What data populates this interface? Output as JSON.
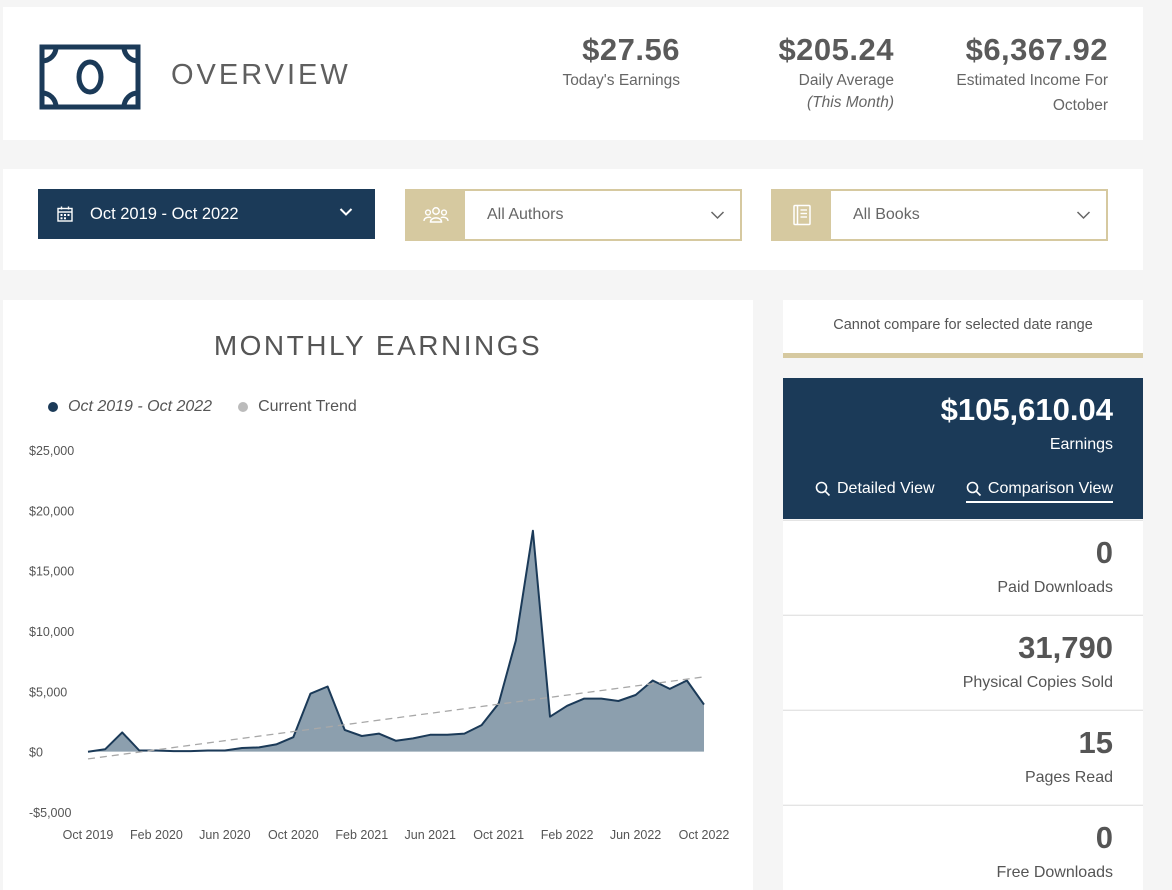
{
  "header": {
    "title": "OVERVIEW",
    "icon": "money-bill-icon",
    "stats": [
      {
        "value": "$27.56",
        "label": "Today's Earnings",
        "sub": ""
      },
      {
        "value": "$205.24",
        "label": "Daily Average",
        "sub": "(This Month)"
      },
      {
        "value": "$6,367.92",
        "label": "Estimated Income For",
        "sub": "October"
      }
    ]
  },
  "filters": {
    "date_range": "Oct 2019 - Oct 2022",
    "authors": "All Authors",
    "books": "All Books"
  },
  "colors": {
    "navy": "#1b3a58",
    "gold": "#d6c9a0",
    "area_fill": "#8c9fae",
    "trend": "#a8a8a8"
  },
  "chart": {
    "title": "MONTHLY EARNINGS",
    "legend": [
      {
        "label": "Oct 2019 - Oct 2022",
        "color": "#1b3a58"
      },
      {
        "label": "Current Trend",
        "color": "#bbbbbb"
      }
    ]
  },
  "chart_data": {
    "type": "area",
    "title": "MONTHLY EARNINGS",
    "ylim": [
      -5000,
      25000
    ],
    "yticks": [
      25000,
      20000,
      15000,
      10000,
      5000,
      0,
      -5000
    ],
    "ytick_labels": [
      "$25,000",
      "$20,000",
      "$15,000",
      "$10,000",
      "$5,000",
      "$0",
      "-$5,000"
    ],
    "xtick_labels": [
      "Oct 2019",
      "Feb 2020",
      "Jun 2020",
      "Oct 2020",
      "Feb 2021",
      "Jun 2021",
      "Oct 2021",
      "Feb 2022",
      "Jun 2022",
      "Oct 2022"
    ],
    "xtick_index": [
      0,
      4,
      8,
      12,
      16,
      20,
      24,
      28,
      32,
      36
    ],
    "series": [
      {
        "name": "Oct 2019 - Oct 2022",
        "values": [
          0,
          200,
          1600,
          100,
          100,
          50,
          50,
          100,
          100,
          300,
          350,
          600,
          1200,
          4800,
          5400,
          1800,
          1300,
          1500,
          900,
          1100,
          1400,
          1400,
          1500,
          2200,
          4000,
          9200,
          18300,
          2900,
          3800,
          4400,
          4400,
          4200,
          4700,
          5900,
          5200,
          5900,
          3900
        ]
      },
      {
        "name": "Current Trend",
        "start": -600,
        "end": 6200
      }
    ]
  },
  "right_panel": {
    "compare_note": "Cannot compare for selected date range",
    "earnings_value": "$105,610.04",
    "earnings_label": "Earnings",
    "detailed_view": "Detailed View",
    "comparison_view": "Comparison View",
    "metrics": [
      {
        "value": "0",
        "label": "Paid Downloads"
      },
      {
        "value": "31,790",
        "label": "Physical Copies Sold"
      },
      {
        "value": "15",
        "label": "Pages Read"
      },
      {
        "value": "0",
        "label": "Free Downloads"
      }
    ]
  }
}
